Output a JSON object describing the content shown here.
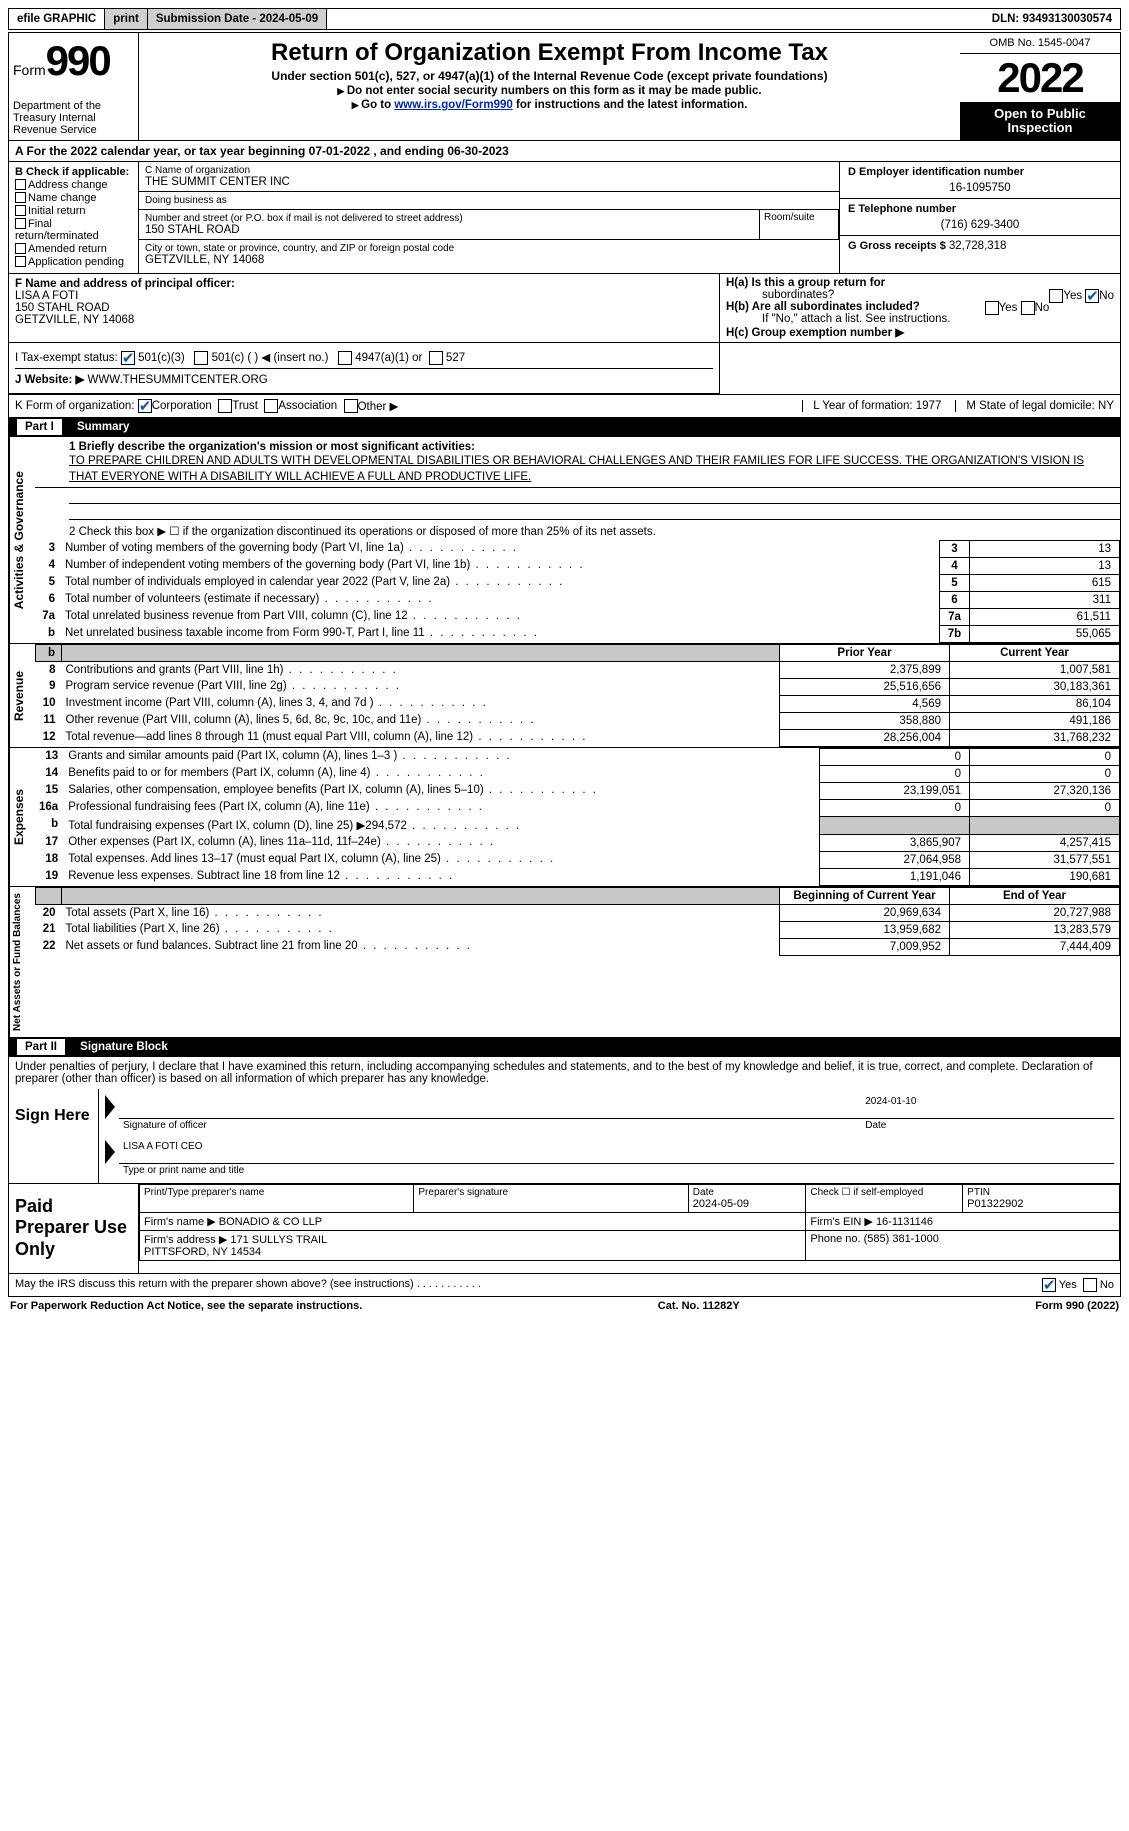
{
  "top_bar": {
    "efile": "efile GRAPHIC",
    "print": "print",
    "sub_label": "Submission Date - ",
    "sub_date": "2024-05-09",
    "dln_label": "DLN: ",
    "dln": "93493130030574"
  },
  "header": {
    "form_word": "Form",
    "form_num": "990",
    "dept": "Department of the Treasury\nInternal Revenue Service",
    "title": "Return of Organization Exempt From Income Tax",
    "subtitle": "Under section 501(c), 527, or 4947(a)(1) of the Internal Revenue Code (except private foundations)",
    "sub2": "Do not enter social security numbers on this form as it may be made public.",
    "sub3_pre": "Go to ",
    "sub3_link": "www.irs.gov/Form990",
    "sub3_post": " for instructions and the latest information.",
    "omb": "OMB No. 1545-0047",
    "year": "2022",
    "open": "Open to Public\nInspection"
  },
  "row_a": "A For the 2022 calendar year, or tax year beginning 07-01-2022   , and ending 06-30-2023",
  "box_b": {
    "title": "B Check if applicable:",
    "items": [
      "Address change",
      "Name change",
      "Initial return",
      "Final return/terminated",
      "Amended return",
      "Application pending"
    ]
  },
  "box_c": {
    "name_lbl": "C Name of organization",
    "name": "THE SUMMIT CENTER INC",
    "dba_lbl": "Doing business as",
    "dba": "",
    "street_lbl": "Number and street (or P.O. box if mail is not delivered to street address)",
    "street": "150 STAHL ROAD",
    "room_lbl": "Room/suite",
    "city_lbl": "City or town, state or province, country, and ZIP or foreign postal code",
    "city": "GETZVILLE, NY  14068"
  },
  "box_d": {
    "lbl": "D Employer identification number",
    "val": "16-1095750"
  },
  "box_e": {
    "lbl": "E Telephone number",
    "val": "(716) 629-3400"
  },
  "box_g": {
    "lbl": "G Gross receipts $ ",
    "val": "32,728,318"
  },
  "box_f": {
    "lbl": "F Name and address of principal officer:",
    "name": "LISA A FOTI",
    "addr1": "150 STAHL ROAD",
    "addr2": "GETZVILLE, NY  14068"
  },
  "box_h": {
    "ha": "H(a)  Is this a group return for",
    "ha2": "subordinates?",
    "hb": "H(b)  Are all subordinates included?",
    "hb_note": "If \"No,\" attach a list. See instructions.",
    "hc": "H(c)  Group exemption number ▶"
  },
  "status": {
    "lbl": "I   Tax-exempt status:",
    "opts": [
      "501(c)(3)",
      "501(c) (  ) ◀ (insert no.)",
      "4947(a)(1) or",
      "527"
    ]
  },
  "j": {
    "lbl": "J   Website: ▶",
    "val": "WWW.THESUMMITCENTER.ORG"
  },
  "k": {
    "lbl": "K Form of organization:",
    "opts": [
      "Corporation",
      "Trust",
      "Association",
      "Other ▶"
    ],
    "l": "L Year of formation: 1977",
    "m": "M State of legal domicile: NY"
  },
  "part1": {
    "title": "Part I",
    "name": "Summary",
    "q1_lbl": "1   Briefly describe the organization's mission or most significant activities:",
    "q1_text": "TO PREPARE CHILDREN AND ADULTS WITH DEVELOPMENTAL DISABILITIES OR BEHAVIORAL CHALLENGES AND THEIR FAMILIES FOR LIFE SUCCESS. THE ORGANIZATION'S VISION IS THAT EVERYONE WITH A DISABILITY WILL ACHIEVE A FULL AND PRODUCTIVE LIFE.",
    "q2": "2   Check this box ▶ ☐  if the organization discontinued its operations or disposed of more than 25% of its net assets.",
    "rows_a": [
      {
        "n": "3",
        "d": "Number of voting members of the governing body (Part VI, line 1a)",
        "bn": "3",
        "v": "13"
      },
      {
        "n": "4",
        "d": "Number of independent voting members of the governing body (Part VI, line 1b)",
        "bn": "4",
        "v": "13"
      },
      {
        "n": "5",
        "d": "Total number of individuals employed in calendar year 2022 (Part V, line 2a)",
        "bn": "5",
        "v": "615"
      },
      {
        "n": "6",
        "d": "Total number of volunteers (estimate if necessary)",
        "bn": "6",
        "v": "311"
      },
      {
        "n": "7a",
        "d": "Total unrelated business revenue from Part VIII, column (C), line 12",
        "bn": "7a",
        "v": "61,511"
      },
      {
        "n": "b",
        "d": "Net unrelated business taxable income from Form 990-T, Part I, line 11",
        "bn": "7b",
        "v": "55,065"
      }
    ],
    "hdr_prior": "Prior Year",
    "hdr_current": "Current Year",
    "rows_rev": [
      {
        "n": "8",
        "d": "Contributions and grants (Part VIII, line 1h)",
        "p": "2,375,899",
        "c": "1,007,581"
      },
      {
        "n": "9",
        "d": "Program service revenue (Part VIII, line 2g)",
        "p": "25,516,656",
        "c": "30,183,361"
      },
      {
        "n": "10",
        "d": "Investment income (Part VIII, column (A), lines 3, 4, and 7d )",
        "p": "4,569",
        "c": "86,104"
      },
      {
        "n": "11",
        "d": "Other revenue (Part VIII, column (A), lines 5, 6d, 8c, 9c, 10c, and 11e)",
        "p": "358,880",
        "c": "491,186"
      },
      {
        "n": "12",
        "d": "Total revenue—add lines 8 through 11 (must equal Part VIII, column (A), line 12)",
        "p": "28,256,004",
        "c": "31,768,232"
      }
    ],
    "rows_exp": [
      {
        "n": "13",
        "d": "Grants and similar amounts paid (Part IX, column (A), lines 1–3 )",
        "p": "0",
        "c": "0"
      },
      {
        "n": "14",
        "d": "Benefits paid to or for members (Part IX, column (A), line 4)",
        "p": "0",
        "c": "0"
      },
      {
        "n": "15",
        "d": "Salaries, other compensation, employee benefits (Part IX, column (A), lines 5–10)",
        "p": "23,199,051",
        "c": "27,320,136"
      },
      {
        "n": "16a",
        "d": "Professional fundraising fees (Part IX, column (A), line 11e)",
        "p": "0",
        "c": "0"
      },
      {
        "n": "b",
        "d": "Total fundraising expenses (Part IX, column (D), line 25) ▶294,572",
        "p": "grey",
        "c": "grey"
      },
      {
        "n": "17",
        "d": "Other expenses (Part IX, column (A), lines 11a–11d, 11f–24e)",
        "p": "3,865,907",
        "c": "4,257,415"
      },
      {
        "n": "18",
        "d": "Total expenses. Add lines 13–17 (must equal Part IX, column (A), line 25)",
        "p": "27,064,958",
        "c": "31,577,551"
      },
      {
        "n": "19",
        "d": "Revenue less expenses. Subtract line 18 from line 12",
        "p": "1,191,046",
        "c": "190,681"
      }
    ],
    "hdr_beg": "Beginning of Current Year",
    "hdr_end": "End of Year",
    "rows_net": [
      {
        "n": "20",
        "d": "Total assets (Part X, line 16)",
        "p": "20,969,634",
        "c": "20,727,988"
      },
      {
        "n": "21",
        "d": "Total liabilities (Part X, line 26)",
        "p": "13,959,682",
        "c": "13,283,579"
      },
      {
        "n": "22",
        "d": "Net assets or fund balances. Subtract line 21 from line 20",
        "p": "7,009,952",
        "c": "7,444,409"
      }
    ],
    "side_labels": {
      "act": "Activities & Governance",
      "rev": "Revenue",
      "exp": "Expenses",
      "net": "Net Assets or\nFund Balances"
    }
  },
  "part2": {
    "title": "Part II",
    "name": "Signature Block",
    "decl": "Under penalties of perjury, I declare that I have examined this return, including accompanying schedules and statements, and to the best of my knowledge and belief, it is true, correct, and complete. Declaration of preparer (other than officer) is based on all information of which preparer has any knowledge.",
    "sign_here": "Sign Here",
    "sig_officer": "Signature of officer",
    "sig_date_val": "2024-01-10",
    "sig_date": "Date",
    "sig_name": "LISA A FOTI CEO",
    "sig_name_lbl": "Type or print name and title",
    "paid": "Paid Preparer Use Only",
    "prep_name_lbl": "Print/Type preparer's name",
    "prep_sig_lbl": "Preparer's signature",
    "prep_date_lbl": "Date",
    "prep_date": "2024-05-09",
    "prep_check": "Check ☐ if self-employed",
    "ptin_lbl": "PTIN",
    "ptin": "P01322902",
    "firm_name_lbl": "Firm's name    ▶",
    "firm_name": "BONADIO & CO LLP",
    "firm_ein_lbl": "Firm's EIN ▶",
    "firm_ein": "16-1131146",
    "firm_addr_lbl": "Firm's address ▶",
    "firm_addr": "171 SULLYS TRAIL\nPITTSFORD, NY  14534",
    "phone_lbl": "Phone no.",
    "phone": "(585) 381-1000",
    "discuss": "May the IRS discuss this return with the preparer shown above? (see instructions)"
  },
  "footer": {
    "left": "For Paperwork Reduction Act Notice, see the separate instructions.",
    "mid": "Cat. No. 11282Y",
    "right": "Form 990 (2022)"
  }
}
